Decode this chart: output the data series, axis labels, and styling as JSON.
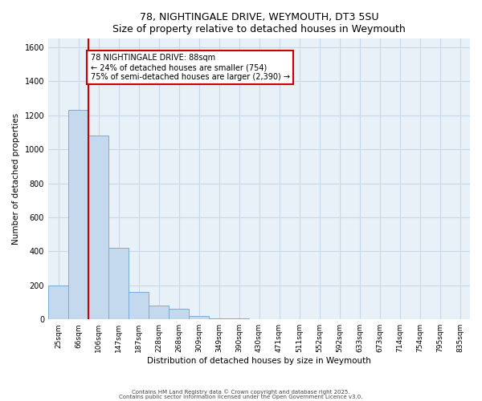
{
  "title": "78, NIGHTINGALE DRIVE, WEYMOUTH, DT3 5SU",
  "subtitle": "Size of property relative to detached houses in Weymouth",
  "xlabel": "Distribution of detached houses by size in Weymouth",
  "ylabel": "Number of detached properties",
  "categories": [
    "25sqm",
    "66sqm",
    "106sqm",
    "147sqm",
    "187sqm",
    "228sqm",
    "268sqm",
    "309sqm",
    "349sqm",
    "390sqm",
    "430sqm",
    "471sqm",
    "511sqm",
    "552sqm",
    "592sqm",
    "633sqm",
    "673sqm",
    "714sqm",
    "754sqm",
    "795sqm",
    "835sqm"
  ],
  "values": [
    200,
    1230,
    1080,
    420,
    160,
    80,
    60,
    20,
    5,
    5,
    3,
    0,
    0,
    0,
    0,
    0,
    0,
    0,
    0,
    0,
    0
  ],
  "bar_color": "#c5d9ee",
  "bar_edge_color": "#7aadd4",
  "ylim": [
    0,
    1650
  ],
  "yticks": [
    0,
    200,
    400,
    600,
    800,
    1000,
    1200,
    1400,
    1600
  ],
  "property_line_x": 1.5,
  "annotation_text": "78 NIGHTINGALE DRIVE: 88sqm\n← 24% of detached houses are smaller (754)\n75% of semi-detached houses are larger (2,390) →",
  "annotation_box_color": "#ffffff",
  "annotation_box_edge": "#cc0000",
  "vline_color": "#cc0000",
  "grid_color": "#c8d8e8",
  "background_color": "#e8f0f8",
  "footer_line1": "Contains HM Land Registry data © Crown copyright and database right 2025.",
  "footer_line2": "Contains public sector information licensed under the Open Government Licence v3.0."
}
